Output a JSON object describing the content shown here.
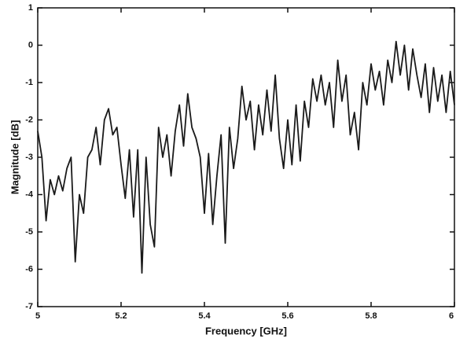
{
  "chart_data": {
    "type": "line",
    "xlabel": "Frequency [GHz]",
    "ylabel": "Magnitude [dB]",
    "x": [
      5.0,
      5.01,
      5.02,
      5.03,
      5.04,
      5.05,
      5.06,
      5.07,
      5.08,
      5.09,
      5.1,
      5.11,
      5.12,
      5.13,
      5.14,
      5.15,
      5.16,
      5.17,
      5.18,
      5.19,
      5.2,
      5.21,
      5.22,
      5.23,
      5.24,
      5.25,
      5.26,
      5.27,
      5.28,
      5.29,
      5.3,
      5.31,
      5.32,
      5.33,
      5.34,
      5.35,
      5.36,
      5.37,
      5.38,
      5.39,
      5.4,
      5.41,
      5.42,
      5.43,
      5.44,
      5.45,
      5.46,
      5.47,
      5.48,
      5.49,
      5.5,
      5.51,
      5.52,
      5.53,
      5.54,
      5.55,
      5.56,
      5.57,
      5.58,
      5.59,
      5.6,
      5.61,
      5.62,
      5.63,
      5.64,
      5.65,
      5.66,
      5.67,
      5.68,
      5.69,
      5.7,
      5.71,
      5.72,
      5.73,
      5.74,
      5.75,
      5.76,
      5.77,
      5.78,
      5.79,
      5.8,
      5.81,
      5.82,
      5.83,
      5.84,
      5.85,
      5.86,
      5.87,
      5.88,
      5.89,
      5.9,
      5.91,
      5.92,
      5.93,
      5.94,
      5.95,
      5.96,
      5.97,
      5.98,
      5.99,
      6.0
    ],
    "series": [
      {
        "color": "#1a1a1a",
        "values": [
          -2.3,
          -3.0,
          -4.7,
          -3.6,
          -4.0,
          -3.5,
          -3.9,
          -3.3,
          -3.0,
          -5.8,
          -4.0,
          -4.5,
          -3.0,
          -2.8,
          -2.2,
          -3.2,
          -2.0,
          -1.7,
          -2.4,
          -2.2,
          -3.2,
          -4.1,
          -2.8,
          -4.6,
          -2.8,
          -6.1,
          -3.0,
          -4.8,
          -5.4,
          -2.2,
          -3.0,
          -2.4,
          -3.5,
          -2.3,
          -1.6,
          -2.7,
          -1.3,
          -2.2,
          -2.5,
          -3.0,
          -4.5,
          -2.9,
          -4.8,
          -3.5,
          -2.4,
          -5.3,
          -2.2,
          -3.3,
          -2.5,
          -1.1,
          -2.0,
          -1.5,
          -2.8,
          -1.6,
          -2.4,
          -1.2,
          -2.3,
          -0.8,
          -2.5,
          -3.3,
          -2.0,
          -3.2,
          -1.6,
          -3.1,
          -1.5,
          -2.2,
          -0.9,
          -1.5,
          -0.8,
          -1.6,
          -1.0,
          -2.2,
          -0.4,
          -1.5,
          -0.8,
          -2.4,
          -1.8,
          -2.8,
          -1.0,
          -1.6,
          -0.5,
          -1.2,
          -0.7,
          -1.6,
          -0.4,
          -1.0,
          0.1,
          -0.8,
          0.0,
          -1.2,
          -0.1,
          -0.8,
          -1.4,
          -0.5,
          -1.8,
          -0.6,
          -1.5,
          -0.8,
          -1.8,
          -0.7,
          -1.6
        ]
      }
    ],
    "xlim": [
      5,
      6
    ],
    "xticks": [
      5,
      5.2,
      5.4,
      5.6,
      5.8,
      6
    ],
    "ylim": [
      -7,
      1
    ],
    "yticks": [
      1,
      0,
      -1,
      -2,
      -3,
      -4,
      -5,
      -6,
      -7
    ]
  }
}
